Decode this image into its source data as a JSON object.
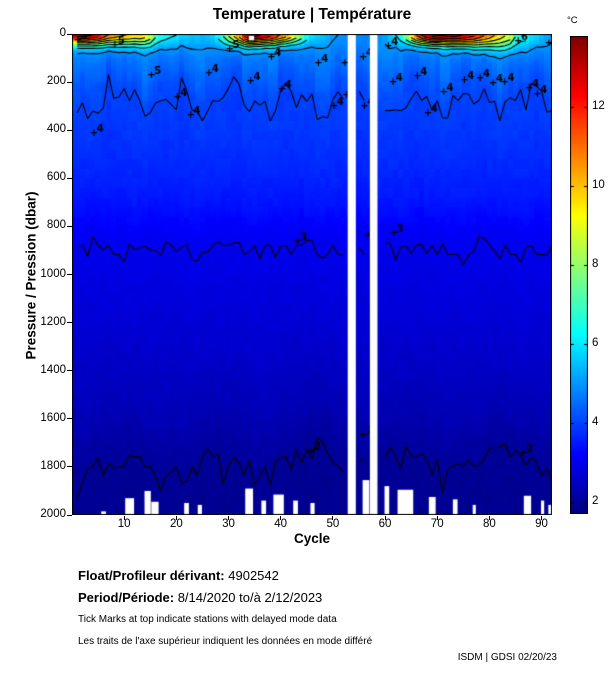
{
  "title": "Temperature | Température",
  "colorbar_unit": "°C",
  "axes": {
    "x_label": "Cycle",
    "y_label": "Pressure / Pression (dbar)"
  },
  "footer": {
    "float_label": "Float/Profileur dérivant:",
    "float_value": "4902542",
    "period_label": "Period/Période:",
    "period_value": "8/14/2020  to/à  2/12/2023",
    "note_en": "Tick Marks at top indicate stations with delayed mode data",
    "note_fr": "Les traits de l'axe supérieur indiquent les données en mode différé",
    "credit": "ISDM | GDSI  02/20/23"
  },
  "chart_data": {
    "type": "heatmap",
    "title": "Temperature | Température",
    "xlabel": "Cycle",
    "ylabel": "Pressure / Pression (dbar)",
    "x_range": [
      0,
      92
    ],
    "x_ticks": [
      10,
      20,
      30,
      40,
      50,
      60,
      70,
      80,
      90
    ],
    "y_range": [
      0,
      2000
    ],
    "y_ticks": [
      0,
      200,
      400,
      600,
      800,
      1000,
      1200,
      1400,
      1600,
      1800,
      2000
    ],
    "color_scale": {
      "colormap": "jet",
      "min": 1.7,
      "max": 13.8,
      "ticks": [
        2,
        4,
        6,
        8,
        10,
        12
      ],
      "unit": "°C"
    },
    "surface_temp_by_cycle": [
      13.5,
      13.6,
      13.4,
      13.0,
      12.6,
      11.8,
      11.2,
      10.8,
      10.4,
      10.2,
      10.0,
      9.8,
      9.9,
      9.4,
      8.6,
      7.2,
      6.6,
      6.3,
      6.1,
      6.0,
      5.9,
      5.8,
      5.6,
      5.5,
      5.4,
      5.5,
      5.8,
      6.3,
      7.2,
      8.2,
      9.4,
      10.6,
      12.2,
      13.8,
      13.5,
      13.2,
      12.9,
      12.5,
      11.8,
      11.2,
      10.6,
      9.6,
      8.6,
      7.6,
      6.6,
      6.0,
      5.7,
      5.5,
      5.3,
      5.2,
      5.1,
      5.0,
      null,
      null,
      4.9,
      4.8,
      4.8,
      null,
      4.9,
      5.1,
      5.5,
      6.0,
      6.6,
      8.0,
      9.6,
      11.2,
      12.2,
      13.0,
      13.5,
      13.3,
      13.1,
      13.3,
      13.5,
      13.3,
      13.1,
      12.7,
      12.2,
      11.7,
      11.2,
      10.6,
      10.1,
      9.6,
      9.1,
      8.6,
      7.2,
      6.6,
      6.3,
      6.1,
      5.9,
      5.6,
      5.3,
      5.1
    ],
    "depth_profile": {
      "pressures": [
        0,
        40,
        100,
        150,
        200,
        250,
        300,
        400,
        500,
        600,
        700,
        800,
        880,
        1000,
        1200,
        1400,
        1600,
        1700,
        1800,
        2000
      ],
      "temps": [
        5.05,
        4.9,
        4.62,
        4.42,
        4.2,
        4.05,
        3.97,
        3.86,
        3.74,
        3.6,
        3.44,
        3.18,
        3.0,
        2.88,
        2.72,
        2.52,
        2.3,
        2.12,
        1.97,
        1.9
      ]
    },
    "labeled_contour_levels": [
      2,
      3,
      4,
      5,
      6
    ],
    "contour_labels": [
      {
        "c": 0.9,
        "p": 25,
        "t": "5"
      },
      {
        "c": 4,
        "p": 410,
        "t": "4"
      },
      {
        "c": 8,
        "p": 45,
        "t": "5"
      },
      {
        "c": 15,
        "p": 170,
        "t": "5"
      },
      {
        "c": 20,
        "p": 262,
        "t": "4"
      },
      {
        "c": 22.5,
        "p": 337,
        "t": "4"
      },
      {
        "c": 26,
        "p": 162,
        "t": "4"
      },
      {
        "c": 30,
        "p": 62,
        "t": "5"
      },
      {
        "c": 34,
        "p": 195,
        "t": "4"
      },
      {
        "c": 38,
        "p": 95,
        "t": "4"
      },
      {
        "c": 40,
        "p": 230,
        "t": "4"
      },
      {
        "c": 43,
        "p": 860,
        "t": "3"
      },
      {
        "c": 45.6,
        "p": 1734,
        "t": "2"
      },
      {
        "c": 47,
        "p": 120,
        "t": "4"
      },
      {
        "c": 50,
        "p": 300,
        "t": "4"
      },
      {
        "c": 52.1,
        "p": 121,
        "t": "4"
      },
      {
        "c": 52.4,
        "p": 255,
        "t": "4"
      },
      {
        "c": 55.6,
        "p": 95,
        "t": "4"
      },
      {
        "c": 55.8,
        "p": 300,
        "t": "4"
      },
      {
        "c": 55.6,
        "p": 1667,
        "t": "2"
      },
      {
        "c": 56.5,
        "p": 836,
        "t": "3"
      },
      {
        "c": 60.4,
        "p": 50,
        "t": "4"
      },
      {
        "c": 61.3,
        "p": 200,
        "t": "4"
      },
      {
        "c": 61.5,
        "p": 827,
        "t": "3"
      },
      {
        "c": 66,
        "p": 175,
        "t": "4"
      },
      {
        "c": 68,
        "p": 330,
        "t": "4"
      },
      {
        "c": 71,
        "p": 240,
        "t": "4"
      },
      {
        "c": 75,
        "p": 190,
        "t": "4"
      },
      {
        "c": 78,
        "p": 185,
        "t": "4"
      },
      {
        "c": 80.5,
        "p": 204,
        "t": "4"
      },
      {
        "c": 82.7,
        "p": 200,
        "t": "4"
      },
      {
        "c": 85.3,
        "p": 30,
        "t": "6"
      },
      {
        "c": 86.3,
        "p": 1742,
        "t": "2"
      },
      {
        "c": 87.4,
        "p": 225,
        "t": "4"
      },
      {
        "c": 89,
        "p": 250,
        "t": "4"
      },
      {
        "c": 91.2,
        "p": 38,
        "t": "5"
      }
    ],
    "missing_cycle_bands": [
      {
        "c0": 52.85,
        "c1": 54.4
      },
      {
        "c0": 57.1,
        "c1": 58.55
      }
    ],
    "missing_surface_patch": {
      "c0": 33.9,
      "c1": 34.9,
      "p0": 8,
      "p1": 26
    },
    "missing_bottom_patches": [
      {
        "c0": 5.6,
        "c1": 6.5,
        "p0": 1985
      },
      {
        "c0": 10.2,
        "c1": 11.9,
        "p0": 1930
      },
      {
        "c0": 13.9,
        "c1": 15.1,
        "p0": 1900
      },
      {
        "c0": 15.2,
        "c1": 16.6,
        "p0": 1945
      },
      {
        "c0": 21.5,
        "c1": 22.4,
        "p0": 1950
      },
      {
        "c0": 24.1,
        "c1": 24.9,
        "p0": 1958
      },
      {
        "c0": 33.2,
        "c1": 34.7,
        "p0": 1890
      },
      {
        "c0": 36.3,
        "c1": 37.2,
        "p0": 1940
      },
      {
        "c0": 38.6,
        "c1": 40.6,
        "p0": 1915
      },
      {
        "c0": 42.4,
        "c1": 43.3,
        "p0": 1940
      },
      {
        "c0": 45.7,
        "c1": 46.5,
        "p0": 1950
      },
      {
        "c0": 55.7,
        "c1": 57.0,
        "p0": 1855
      },
      {
        "c0": 59.9,
        "c1": 60.8,
        "p0": 1880
      },
      {
        "c0": 62.4,
        "c1": 65.4,
        "p0": 1895
      },
      {
        "c0": 68.4,
        "c1": 69.7,
        "p0": 1925
      },
      {
        "c0": 73.0,
        "c1": 73.9,
        "p0": 1935
      },
      {
        "c0": 76.8,
        "c1": 77.4,
        "p0": 1958
      },
      {
        "c0": 86.6,
        "c1": 88.0,
        "p0": 1920
      },
      {
        "c0": 89.9,
        "c1": 90.5,
        "p0": 1940
      },
      {
        "c0": 91.3,
        "c1": 91.9,
        "p0": 1958
      }
    ]
  }
}
